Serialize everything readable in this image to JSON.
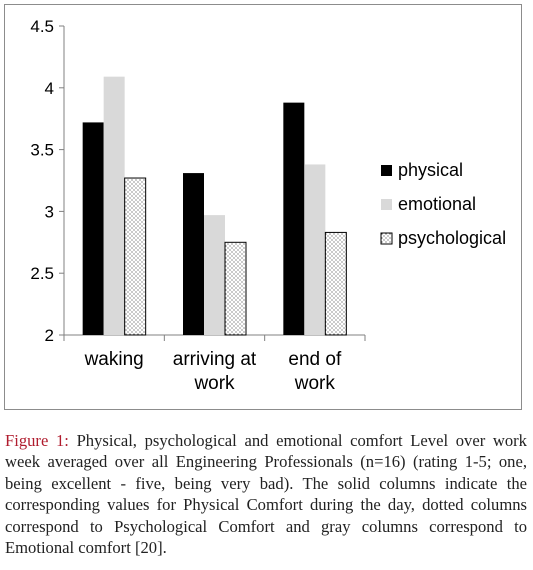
{
  "chart_data": {
    "type": "bar",
    "categories": [
      [
        "waking"
      ],
      [
        "arriving at",
        "work"
      ],
      [
        "end of",
        "work"
      ]
    ],
    "series": [
      {
        "name": "physical",
        "values": [
          3.72,
          3.31,
          3.88
        ],
        "color": "#000000",
        "pattern": "solid"
      },
      {
        "name": "emotional",
        "values": [
          4.09,
          2.97,
          3.38
        ],
        "color": "#d9d9d9",
        "pattern": "solid"
      },
      {
        "name": "psychological",
        "values": [
          3.27,
          2.75,
          2.83
        ],
        "color": "#ffffff",
        "pattern": "dotted"
      }
    ],
    "ylim": [
      2,
      4.5
    ],
    "yticks": [
      "2",
      "2.5",
      "3",
      "3.5",
      "4",
      "4.5"
    ],
    "grid": false,
    "legend_position": "right"
  },
  "caption": {
    "label": "Figure 1:",
    "text": " Physical, psychological and emotional comfort Level over work week averaged over all Engineering Professionals (n=16) (rating 1-5; one, being excellent - five, being very bad). The solid columns indicate the corresponding values for Physical Comfort during the day, dotted columns correspond to Psychological Comfort and gray columns correspond to Emotional comfort [20]."
  }
}
